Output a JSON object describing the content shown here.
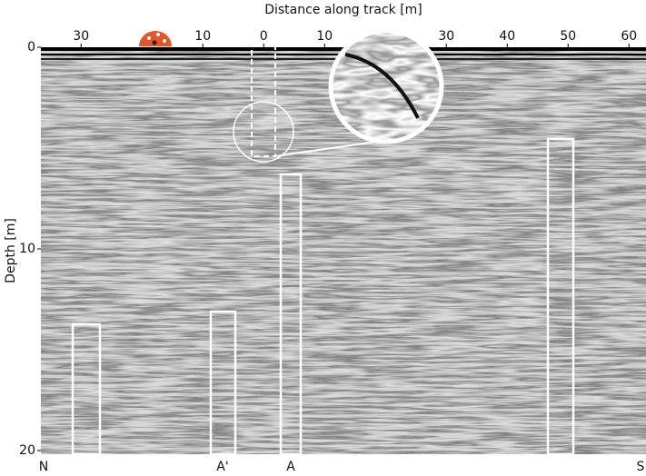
{
  "chart_data": {
    "type": "radargram",
    "x_label": "Distance along track [m]",
    "y_label": "Depth [m]",
    "xlim": [
      -36.6,
      62.8
    ],
    "ylim": [
      0,
      20
    ],
    "y_inverted": true,
    "xticks": [
      {
        "value": -30,
        "label": "30"
      },
      {
        "value": -10,
        "label": "10"
      },
      0,
      10,
      30,
      40,
      50,
      60
    ],
    "yticks": [
      0,
      10,
      20
    ],
    "annotations": [
      "N",
      "A'",
      "A",
      "S"
    ]
  }
}
